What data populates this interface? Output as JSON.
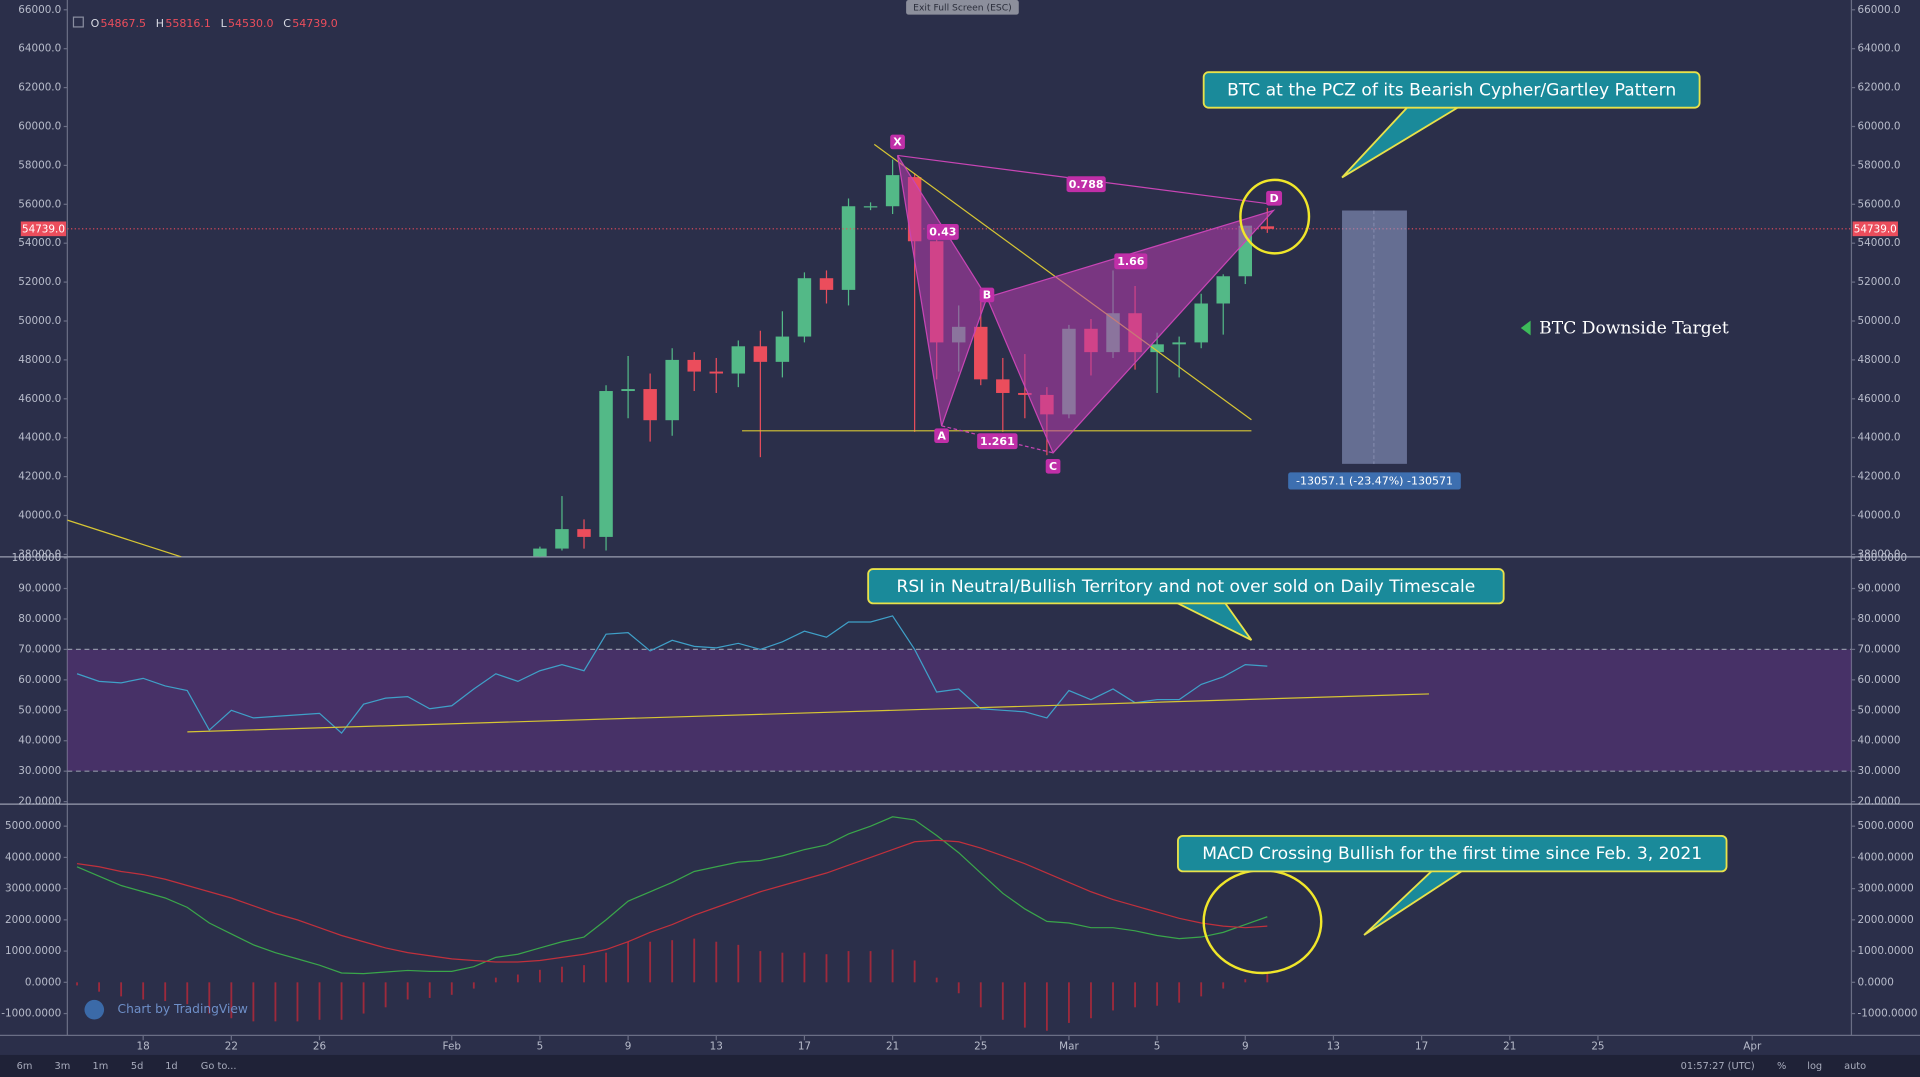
{
  "toolbar": {
    "exit_fullscreen": "Exit Full Screen (ESC)",
    "intervals": [
      "6m",
      "3m",
      "1m",
      "5d",
      "1d"
    ],
    "goto": "Go to...",
    "clock": "01:57:27 (UTC)",
    "options": [
      "%",
      "log",
      "auto"
    ]
  },
  "watermark": "Chart by TradingView",
  "chart_data": [
    {
      "type": "candlestick",
      "ohlc_header": [
        {
          "key": "O",
          "value": "54867.5"
        },
        {
          "key": "H",
          "value": "55816.1"
        },
        {
          "key": "L",
          "value": "54530.0"
        },
        {
          "key": "C",
          "value": "54739.0"
        }
      ],
      "last_price_label": "54739.0",
      "up_color": "#53b987",
      "down_color": "#eb4d5c",
      "x": [
        36,
        37,
        38,
        39,
        40,
        41,
        42,
        43,
        44,
        45,
        46,
        47,
        48,
        49,
        50,
        51,
        52,
        53,
        54,
        55,
        56,
        57,
        58,
        59,
        60,
        61,
        62,
        63,
        64,
        65,
        66,
        67,
        68,
        69
      ],
      "open": [
        37900,
        38300,
        39300,
        38900,
        46400,
        46500,
        44900,
        48000,
        47400,
        47300,
        48700,
        47900,
        49200,
        52200,
        51600,
        55900,
        55900,
        57400,
        54100,
        48900,
        49700,
        47000,
        46300,
        46200,
        45200,
        49600,
        48400,
        50400,
        48400,
        48800,
        48900,
        50900,
        52300,
        54867.5
      ],
      "high": [
        38400,
        41000,
        39800,
        46700,
        48200,
        47300,
        48600,
        48400,
        48100,
        49000,
        49500,
        50500,
        52500,
        52600,
        56300,
        56100,
        58300,
        57600,
        54200,
        50800,
        51300,
        48100,
        48300,
        46600,
        49800,
        50100,
        52600,
        51800,
        49400,
        49200,
        51400,
        52400,
        54900,
        55816.1
      ],
      "low": [
        37600,
        38200,
        38300,
        38200,
        45000,
        43800,
        44100,
        46400,
        46300,
        46600,
        43000,
        47100,
        48900,
        50900,
        50800,
        55700,
        55500,
        44300,
        47000,
        47400,
        46700,
        44300,
        45000,
        43100,
        45000,
        47200,
        48100,
        47500,
        46300,
        47100,
        48600,
        49300,
        51900,
        54530
      ],
      "close": [
        38300,
        39300,
        38900,
        46400,
        46500,
        44900,
        48000,
        47400,
        47300,
        48700,
        47900,
        49200,
        52200,
        51600,
        55900,
        55900,
        57500,
        54100,
        48900,
        49700,
        47000,
        46300,
        46200,
        45200,
        49600,
        48400,
        50400,
        48400,
        48800,
        48900,
        50900,
        52300,
        54900,
        54739
      ],
      "xlim": [
        14.56,
        95.5
      ],
      "xticks": [
        18,
        22,
        26,
        {
          "value": 32,
          "label": "Feb"
        },
        {
          "value": 36,
          "label": "5"
        },
        {
          "value": 40,
          "label": "9"
        },
        {
          "value": 44,
          "label": "13"
        },
        {
          "value": 48,
          "label": "17"
        },
        {
          "value": 52,
          "label": "21"
        },
        {
          "value": 56,
          "label": "25"
        },
        {
          "value": 60,
          "label": "Mar"
        },
        {
          "value": 64,
          "label": "5"
        },
        {
          "value": 68,
          "label": "9"
        },
        {
          "value": 72,
          "label": "13"
        },
        {
          "value": 76,
          "label": "17"
        },
        {
          "value": 80,
          "label": "21"
        },
        {
          "value": 84,
          "label": "25"
        },
        {
          "value": 91,
          "label": "Apr"
        }
      ],
      "ylim": [
        38000,
        66000
      ],
      "yticks": [
        {
          "value": 38000,
          "label": "38000.0"
        },
        {
          "value": 40000,
          "label": "40000.0"
        },
        {
          "value": 42000,
          "label": "42000.0"
        },
        {
          "value": 44000,
          "label": "44000.0"
        },
        {
          "value": 46000,
          "label": "46000.0"
        },
        {
          "value": 48000,
          "label": "48000.0"
        },
        {
          "value": 50000,
          "label": "50000.0"
        },
        {
          "value": 52000,
          "label": "52000.0"
        },
        {
          "value": 54000,
          "label": "54000.0"
        },
        {
          "value": 56000,
          "label": "56000.0"
        },
        {
          "value": 58000,
          "label": "58000.0"
        },
        {
          "value": 60000,
          "label": "60000.0"
        },
        {
          "value": 62000,
          "label": "62000.0"
        },
        {
          "value": 64000,
          "label": "64000.0"
        },
        {
          "value": 66000,
          "label": "66000.0"
        }
      ],
      "pattern_points": [
        "X",
        "A",
        "B",
        "C",
        "D"
      ],
      "ratios": [
        "0.788",
        "0.43",
        "1.66",
        "1.261"
      ],
      "callout": "BTC at the PCZ of its Bearish Cypher/Gartley Pattern",
      "target_label": "BTC Downside Target",
      "measure_label": "-13057.1 (-23.47%) -130571"
    },
    {
      "type": "line",
      "color": "#3fa0c8",
      "x": [
        15,
        16,
        17,
        18,
        19,
        20,
        21,
        22,
        23,
        24,
        25,
        26,
        27,
        28,
        29,
        30,
        31,
        32,
        33,
        34,
        35,
        36,
        37,
        38,
        39,
        40,
        41,
        42,
        43,
        44,
        45,
        46,
        47,
        48,
        49,
        50,
        51,
        52,
        53,
        54,
        55,
        56,
        57,
        58,
        59,
        60,
        61,
        62,
        63,
        64,
        65,
        66,
        67,
        68,
        69
      ],
      "values": [
        62,
        59.5,
        59,
        60.5,
        58,
        56.5,
        43.5,
        50,
        47.5,
        48,
        48.5,
        49,
        42.5,
        52,
        54,
        54.5,
        50.5,
        51.5,
        57,
        62,
        59.5,
        63,
        65,
        63,
        75,
        75.5,
        69.5,
        73,
        71,
        70.5,
        72,
        70,
        72.5,
        76,
        74,
        79,
        79,
        81,
        70,
        56,
        57,
        50.5,
        50,
        49.5,
        47.5,
        56.5,
        53.5,
        57,
        52.5,
        53.5,
        53.5,
        58.5,
        61,
        65,
        64.5
      ],
      "bands": [
        30,
        70
      ],
      "ylim": [
        20,
        100
      ],
      "yticks": [
        {
          "value": 20,
          "label": "20.0000"
        },
        {
          "value": 30,
          "label": "30.0000"
        },
        {
          "value": 40,
          "label": "40.0000"
        },
        {
          "value": 50,
          "label": "50.0000"
        },
        {
          "value": 60,
          "label": "60.0000"
        },
        {
          "value": 70,
          "label": "70.0000"
        },
        {
          "value": 80,
          "label": "80.0000"
        },
        {
          "value": 90,
          "label": "90.0000"
        },
        {
          "value": 100,
          "label": "100.0000"
        }
      ],
      "callout": "RSI in Neutral/Bullish Territory and not over sold on Daily Timescale"
    },
    {
      "type": "line",
      "x": [
        15,
        16,
        17,
        18,
        19,
        20,
        21,
        22,
        23,
        24,
        25,
        26,
        27,
        28,
        29,
        30,
        31,
        32,
        33,
        34,
        35,
        36,
        37,
        38,
        39,
        40,
        41,
        42,
        43,
        44,
        45,
        46,
        47,
        48,
        49,
        50,
        51,
        52,
        53,
        54,
        55,
        56,
        57,
        58,
        59,
        60,
        61,
        62,
        63,
        64,
        65,
        66,
        67,
        68,
        69
      ],
      "series": [
        {
          "type": "bar",
          "color": "#9e2a3c",
          "values": [
            -100,
            -300,
            -450,
            -550,
            -600,
            -700,
            -1000,
            -1150,
            -1250,
            -1250,
            -1250,
            -1200,
            -1200,
            -1000,
            -800,
            -550,
            -500,
            -400,
            -200,
            150,
            250,
            400,
            500,
            550,
            950,
            1300,
            1300,
            1350,
            1400,
            1300,
            1200,
            1000,
            950,
            950,
            900,
            1000,
            1000,
            1050,
            700,
            150,
            -350,
            -800,
            -1200,
            -1450,
            -1550,
            -1300,
            -1150,
            -900,
            -800,
            -750,
            -650,
            -450,
            -200,
            100,
            300
          ]
        },
        {
          "color": "#3aa64a",
          "values": [
            3700,
            3400,
            3100,
            2900,
            2700,
            2400,
            1900,
            1550,
            1200,
            950,
            750,
            550,
            300,
            280,
            330,
            380,
            350,
            350,
            500,
            800,
            900,
            1100,
            1300,
            1450,
            2000,
            2600,
            2900,
            3200,
            3550,
            3700,
            3850,
            3900,
            4050,
            4250,
            4400,
            4750,
            5000,
            5300,
            5200,
            4700,
            4150,
            3500,
            2850,
            2350,
            1950,
            1900,
            1750,
            1750,
            1650,
            1500,
            1400,
            1450,
            1600,
            1850,
            2100
          ]
        },
        {
          "color": "#c0303c",
          "values": [
            3800,
            3700,
            3550,
            3450,
            3300,
            3100,
            2900,
            2700,
            2450,
            2200,
            2000,
            1750,
            1500,
            1300,
            1100,
            950,
            850,
            750,
            700,
            650,
            650,
            700,
            800,
            900,
            1050,
            1300,
            1600,
            1850,
            2150,
            2400,
            2650,
            2900,
            3100,
            3300,
            3500,
            3750,
            4000,
            4250,
            4500,
            4550,
            4500,
            4300,
            4050,
            3800,
            3500,
            3200,
            2900,
            2650,
            2450,
            2250,
            2050,
            1900,
            1800,
            1750,
            1800
          ]
        }
      ],
      "ylim": [
        -1660,
        5590
      ],
      "yticks": [
        {
          "value": -1000,
          "label": "-1000.0000"
        },
        {
          "value": 0,
          "label": "0.0000"
        },
        {
          "value": 1000,
          "label": "1000.0000"
        },
        {
          "value": 2000,
          "label": "2000.0000"
        },
        {
          "value": 3000,
          "label": "3000.0000"
        },
        {
          "value": 4000,
          "label": "4000.0000"
        },
        {
          "value": 5000,
          "label": "5000.0000"
        }
      ],
      "callout": "MACD Crossing Bullish for the first time since Feb. 3, 2021"
    }
  ]
}
